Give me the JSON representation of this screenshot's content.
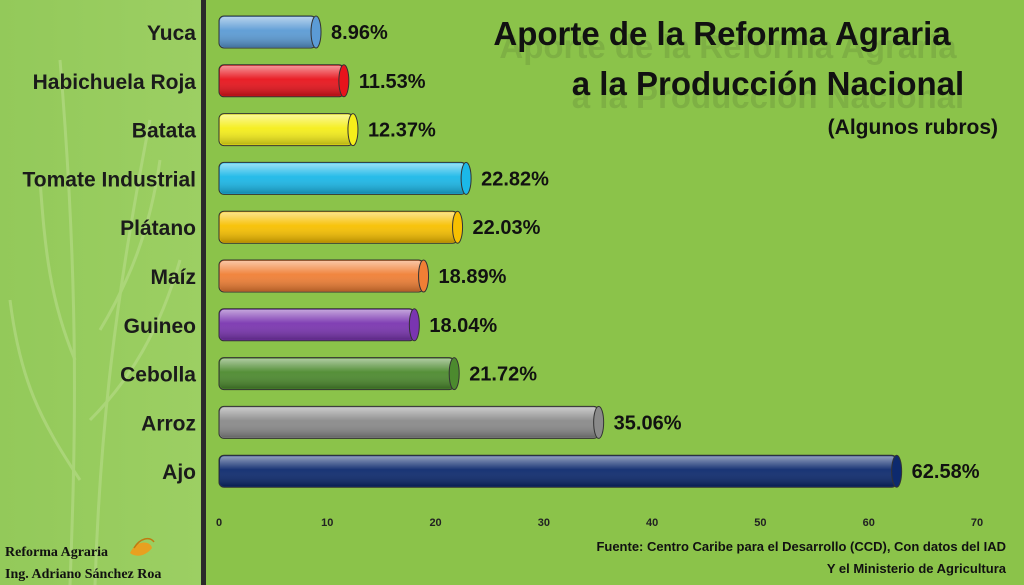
{
  "chart_data": {
    "type": "bar",
    "orientation": "horizontal",
    "title_line1": "Aporte de la Reforma Agraria",
    "title_line2": "a la Producción Nacional",
    "subtitle": "(Algunos rubros)",
    "categories": [
      "Yuca",
      "Habichuela Roja",
      "Batata",
      "Tomate Industrial",
      "Plátano",
      "Maíz",
      "Guineo",
      "Cebolla",
      "Arroz",
      "Ajo"
    ],
    "values": [
      8.96,
      11.53,
      12.37,
      22.82,
      22.03,
      18.89,
      18.04,
      21.72,
      35.06,
      62.58
    ],
    "value_labels": [
      "8.96%",
      "11.53%",
      "12.37%",
      "22.82%",
      "22.03%",
      "18.89%",
      "18.04%",
      "21.72%",
      "35.06%",
      "62.58%"
    ],
    "colors": [
      "#5b9bd5",
      "#e8141c",
      "#f5ee1a",
      "#1bb8e8",
      "#f7c000",
      "#f07f35",
      "#7a35b0",
      "#4c8a2e",
      "#8a8a8a",
      "#0d2a6e"
    ],
    "xlim": [
      0,
      70
    ],
    "xticks": [
      "0",
      "10",
      "20",
      "30",
      "40",
      "50",
      "60",
      "70"
    ],
    "grid": false,
    "legend": "none"
  },
  "footer": {
    "source_line1": "Fuente: Centro Caribe para el Desarrollo (CCD), Con datos del IAD",
    "source_line2": "Y el Ministerio de Agricultura",
    "credit_line1": "Reforma Agraria",
    "credit_line2": "Ing. Adriano Sánchez Roa"
  }
}
